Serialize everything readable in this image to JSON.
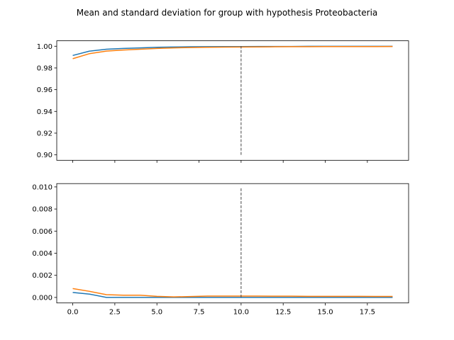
{
  "chart_data": {
    "type": "line",
    "title": "Mean and standard deviation for group with hypothesis Proteobacteria",
    "x": [
      0,
      1,
      2,
      3,
      4,
      5,
      6,
      7,
      8,
      9,
      10,
      11,
      12,
      13,
      14,
      15,
      16,
      17,
      18,
      19
    ],
    "x_tick_labels": [
      "0.0",
      "2.5",
      "5.0",
      "7.5",
      "10.0",
      "12.5",
      "15.0",
      "17.5"
    ],
    "x_tick_values": [
      0,
      2.5,
      5,
      7.5,
      10,
      12.5,
      15,
      17.5
    ],
    "xlim": [
      -0.95,
      19.95
    ],
    "vline_x": 10,
    "colors": {
      "series_a": "#1f77b4",
      "series_b": "#ff7f0e",
      "vline": "#444444"
    },
    "panels": [
      {
        "ylim": [
          0.895,
          1.005
        ],
        "y_tick_values": [
          0.9,
          0.92,
          0.94,
          0.96,
          0.98,
          1.0
        ],
        "y_tick_labels": [
          "0.90",
          "0.92",
          "0.94",
          "0.96",
          "0.98",
          "1.00"
        ],
        "vline_range": [
          0.9,
          1.0
        ],
        "series": [
          {
            "values": [
              0.9915,
              0.9955,
              0.9972,
              0.998,
              0.9985,
              0.999,
              0.9993,
              0.9995,
              0.9996,
              0.9997,
              0.9997,
              0.9998,
              0.9998,
              0.9998,
              0.9999,
              0.9999,
              0.9999,
              0.9999,
              0.9999,
              0.9999
            ]
          },
          {
            "values": [
              0.9885,
              0.9932,
              0.9955,
              0.9965,
              0.9972,
              0.998,
              0.9985,
              0.9988,
              0.999,
              0.9992,
              0.9993,
              0.9994,
              0.9995,
              0.9996,
              0.9996,
              0.9997,
              0.9997,
              0.9997,
              0.9997,
              0.9998
            ]
          }
        ]
      },
      {
        "ylim": [
          -0.0005,
          0.0103
        ],
        "y_tick_values": [
          0.0,
          0.002,
          0.004,
          0.006,
          0.008,
          0.01
        ],
        "y_tick_labels": [
          "0.000",
          "0.002",
          "0.004",
          "0.006",
          "0.008",
          "0.010"
        ],
        "vline_range": [
          0.0,
          0.01
        ],
        "series": [
          {
            "values": [
              0.00045,
              0.0003,
              0.0,
              0.0,
              0.0,
              0.0,
              0.0,
              0.0,
              0.0,
              0.0,
              0.0,
              0.0,
              0.0,
              0.0,
              0.0,
              0.0,
              0.0,
              0.0,
              0.0,
              0.0
            ]
          },
          {
            "values": [
              0.0008,
              0.00055,
              0.00025,
              0.0002,
              0.0002,
              0.0001,
              5e-05,
              8e-05,
              0.00012,
              0.00012,
              0.00012,
              0.00012,
              0.00011,
              0.00011,
              0.0001,
              0.0001,
              0.0001,
              0.0001,
              9e-05,
              9e-05
            ]
          }
        ]
      }
    ]
  }
}
